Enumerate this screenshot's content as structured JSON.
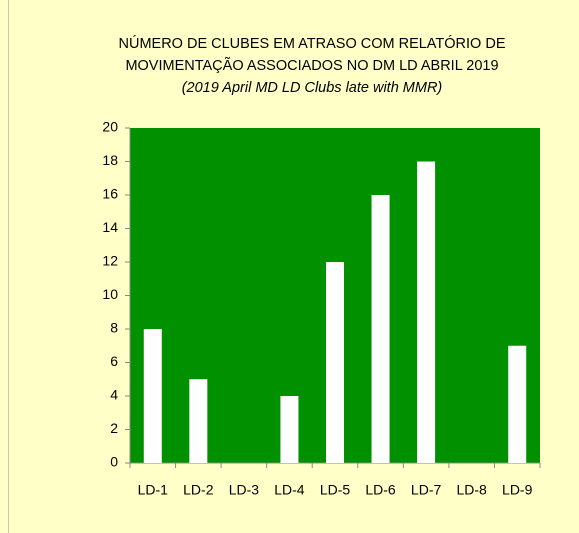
{
  "chart_data": {
    "type": "bar",
    "title": [
      "NÚMERO DE CLUBES EM ATRASO COM RELATÓRIO DE",
      "MOVIMENTAÇÃO  ASSOCIADOS NO DM LD ABRIL  2019"
    ],
    "subtitle": "(2019 April MD LD Clubs late with MMR)",
    "categories": [
      "LD-1",
      "LD-2",
      "LD-3",
      "LD-4",
      "LD-5",
      "LD-6",
      "LD-7",
      "LD-8",
      "LD-9"
    ],
    "values": [
      8,
      5,
      0,
      4,
      12,
      16,
      18,
      0,
      7
    ],
    "color": "#ffffff",
    "plot_background": "#009000",
    "ylim": [
      0,
      20
    ],
    "yticks": [
      0,
      2,
      4,
      6,
      8,
      10,
      12,
      14,
      16,
      18,
      20
    ],
    "grid": false
  }
}
